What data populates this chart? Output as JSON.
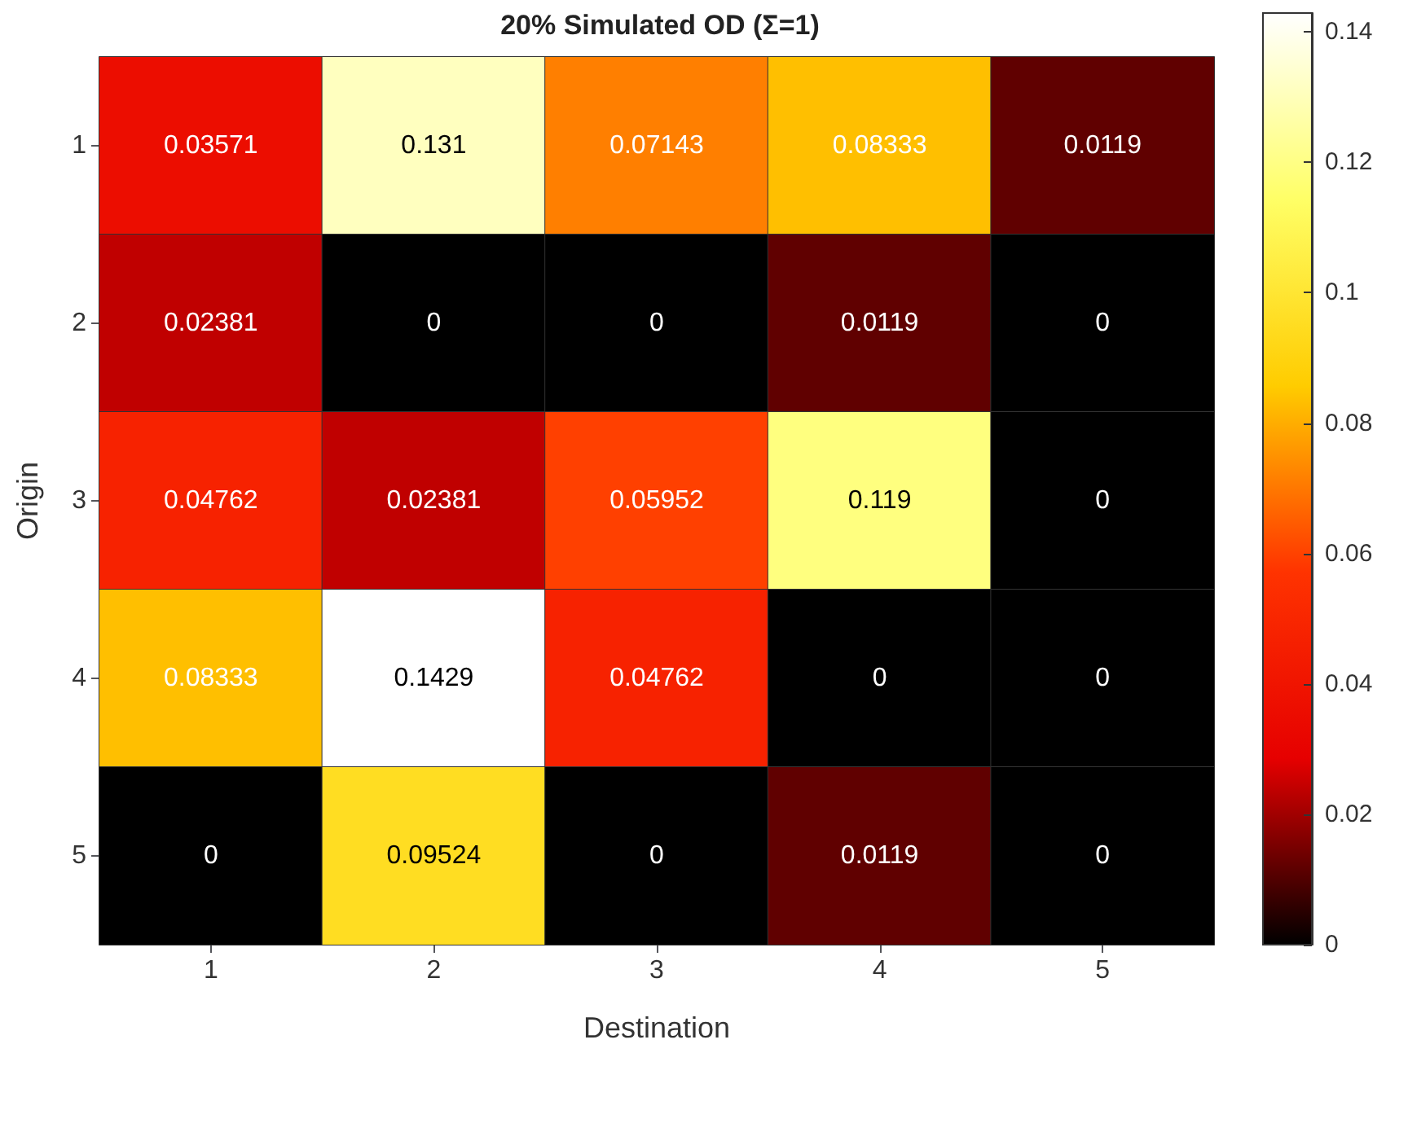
{
  "chart_data": {
    "type": "heatmap",
    "title": "20% Simulated OD (Σ=1)",
    "xlabel": "Destination",
    "ylabel": "Origin",
    "categories": [
      "1",
      "2",
      "3",
      "4",
      "5"
    ],
    "y_categories": [
      "1",
      "2",
      "3",
      "4",
      "5"
    ],
    "cells": [
      [
        0.03571,
        0.131,
        0.07143,
        0.08333,
        0.0119
      ],
      [
        0.02381,
        0,
        0,
        0.0119,
        0
      ],
      [
        0.04762,
        0.02381,
        0.05952,
        0.119,
        0
      ],
      [
        0.08333,
        0.1429,
        0.04762,
        0,
        0
      ],
      [
        0,
        0.09524,
        0,
        0.0119,
        0
      ]
    ],
    "data_labels": true,
    "clim": [
      0,
      0.1429
    ],
    "cticks": [
      0,
      0.02,
      0.04,
      0.06,
      0.08,
      0.1,
      0.12,
      0.14
    ]
  }
}
